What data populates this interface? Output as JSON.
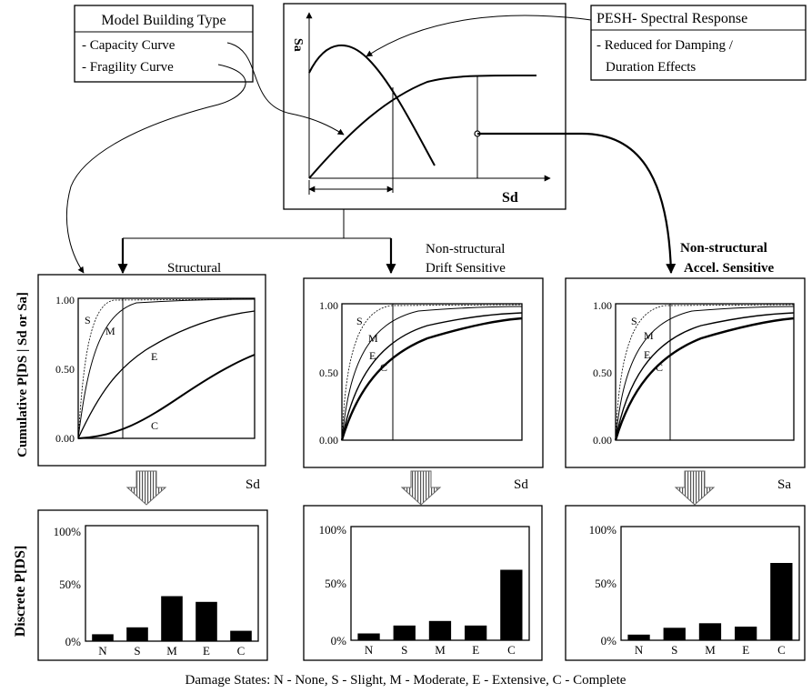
{
  "model_box": {
    "title": "Model Building Type",
    "items": [
      "- Capacity Curve",
      "- Fragility Curve"
    ]
  },
  "pesh_box": {
    "title": "PESH- Spectral Response",
    "items": [
      "- Reduced for Damping /",
      "Duration Effects"
    ]
  },
  "spectrum_plot": {
    "y_label": "Sa",
    "x_label": "Sd"
  },
  "fragility": {
    "y_axis_title": "Cumulative P[DS | Sd or Sa]",
    "y_ticks": [
      "1.00",
      "0.50",
      "0.00"
    ],
    "panels": [
      {
        "title_lines": [
          "Structural"
        ],
        "x_label": "Sd",
        "state_labels": [
          "S",
          "M",
          "E",
          "C"
        ],
        "threshold": 0.25
      },
      {
        "title_lines": [
          "Non-structural",
          "Drift Sensitive"
        ],
        "x_label": "Sd",
        "state_labels": [
          "S",
          "M",
          "E",
          "C"
        ],
        "threshold": 0.25
      },
      {
        "title_lines": [
          "Non-structural",
          "Accel. Sensitive"
        ],
        "x_label": "Sa",
        "state_labels": [
          "S",
          "M",
          "E",
          "C"
        ],
        "threshold": 0.25
      }
    ]
  },
  "discrete": {
    "y_axis_title": "Discrete P[DS]",
    "y_ticks": [
      "100%",
      "50%",
      "0%"
    ]
  },
  "chart_data": [
    {
      "type": "bar",
      "categories": [
        "N",
        "S",
        "M",
        "E",
        "C"
      ],
      "values": [
        6,
        12,
        39,
        34,
        9
      ],
      "ylim": [
        0,
        100
      ]
    },
    {
      "type": "bar",
      "categories": [
        "N",
        "S",
        "M",
        "E",
        "C"
      ],
      "values": [
        6,
        13,
        17,
        13,
        62
      ],
      "ylim": [
        0,
        100
      ]
    },
    {
      "type": "bar",
      "categories": [
        "N",
        "S",
        "M",
        "E",
        "C"
      ],
      "values": [
        5,
        11,
        15,
        12,
        68
      ],
      "ylim": [
        0,
        100
      ]
    }
  ],
  "legend_text": "Damage States: N - None, S - Slight, M - Moderate, E - Extensive, C - Complete",
  "colors": {
    "ink": "#000000",
    "background": "#ffffff"
  }
}
